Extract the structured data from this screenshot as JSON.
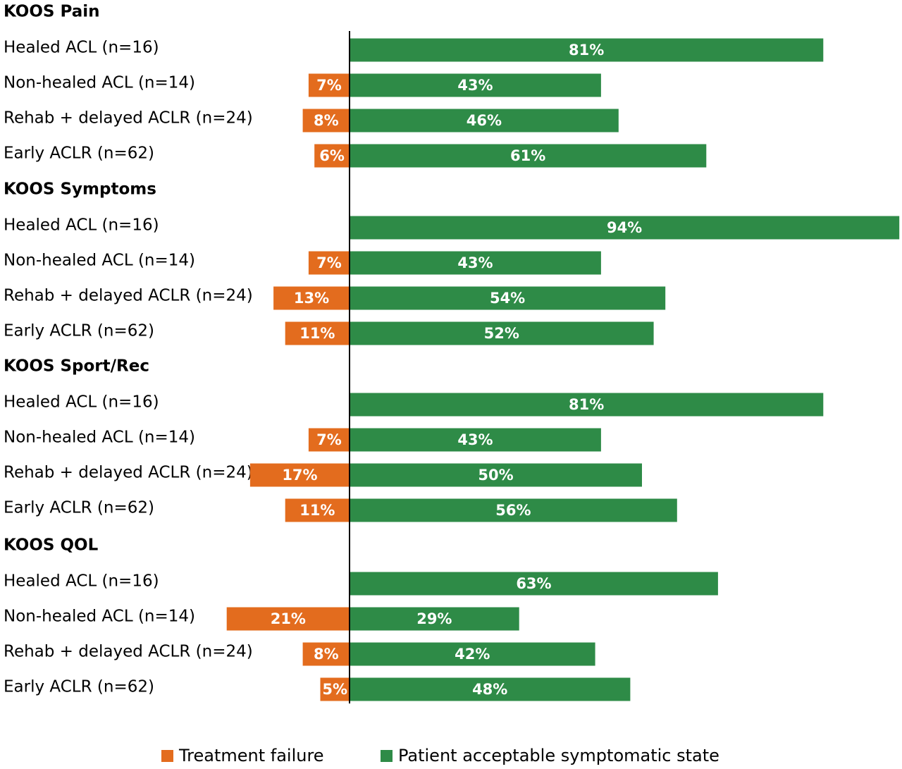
{
  "chart_data": {
    "type": "bar",
    "orientation": "horizontal-diverging",
    "series": [
      {
        "key": "failure",
        "name": "Treatment failure",
        "color": "#E36C1E"
      },
      {
        "key": "pass",
        "name": "Patient acceptable symptomatic state",
        "color": "#2E8B47"
      }
    ],
    "legend_placement": "bottom",
    "groups": [
      {
        "title": "KOOS Pain",
        "rows": [
          {
            "label": "Healed ACL (n=16)",
            "failure": null,
            "failure_label": "",
            "pass": 81,
            "pass_label": "81%"
          },
          {
            "label": "Non-healed ACL (n=14)",
            "failure": 7,
            "failure_label": "7%",
            "pass": 43,
            "pass_label": "43%"
          },
          {
            "label": "Rehab + delayed ACLR (n=24)",
            "failure": 8,
            "failure_label": "8%",
            "pass": 46,
            "pass_label": "46%"
          },
          {
            "label": "Early ACLR (n=62)",
            "failure": 6,
            "failure_label": "6%",
            "pass": 61,
            "pass_label": "61%"
          }
        ]
      },
      {
        "title": "KOOS Symptoms",
        "rows": [
          {
            "label": "Healed ACL (n=16)",
            "failure": null,
            "failure_label": "",
            "pass": 94,
            "pass_label": "94%"
          },
          {
            "label": "Non-healed ACL (n=14)",
            "failure": 7,
            "failure_label": "7%",
            "pass": 43,
            "pass_label": "43%"
          },
          {
            "label": "Rehab + delayed ACLR (n=24)",
            "failure": 13,
            "failure_label": "13%",
            "pass": 54,
            "pass_label": "54%"
          },
          {
            "label": "Early ACLR (n=62)",
            "failure": 11,
            "failure_label": "11%",
            "pass": 52,
            "pass_label": "52%"
          }
        ]
      },
      {
        "title": "KOOS Sport/Rec",
        "rows": [
          {
            "label": "Healed ACL (n=16)",
            "failure": null,
            "failure_label": "",
            "pass": 81,
            "pass_label": "81%"
          },
          {
            "label": "Non-healed ACL (n=14)",
            "failure": 7,
            "failure_label": "7%",
            "pass": 43,
            "pass_label": "43%"
          },
          {
            "label": "Rehab + delayed ACLR (n=24)",
            "failure": 17,
            "failure_label": "17%",
            "pass": 50,
            "pass_label": "50%"
          },
          {
            "label": "Early ACLR (n=62)",
            "failure": 11,
            "failure_label": "11%",
            "pass": 56,
            "pass_label": "56%"
          }
        ]
      },
      {
        "title": "KOOS QOL",
        "rows": [
          {
            "label": "Healed ACL (n=16)",
            "failure": null,
            "failure_label": "",
            "pass": 63,
            "pass_label": "63%"
          },
          {
            "label": "Non-healed ACL (n=14)",
            "failure": 21,
            "failure_label": "21%",
            "pass": 29,
            "pass_label": "29%"
          },
          {
            "label": "Rehab + delayed ACLR (n=24)",
            "failure": 8,
            "failure_label": "8%",
            "pass": 42,
            "pass_label": "42%"
          },
          {
            "label": "Early ACLR (n=62)",
            "failure": 5,
            "failure_label": "5%",
            "pass": 48,
            "pass_label": "48%"
          }
        ]
      }
    ]
  }
}
